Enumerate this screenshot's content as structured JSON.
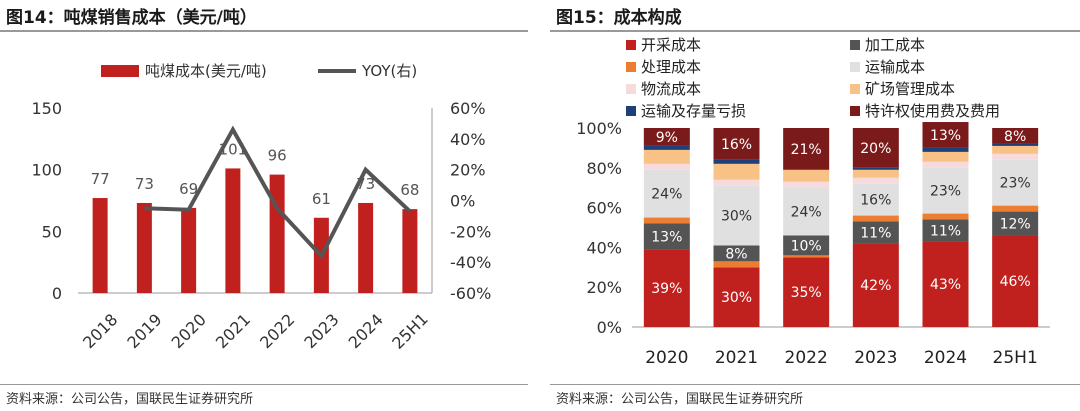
{
  "left_panel": {
    "title": "图14：吨煤销售成本（美元/吨）",
    "source": "资料来源：公司公告，国联民生证券研究所"
  },
  "right_panel": {
    "title": "图15：成本构成",
    "source": "资料来源：公司公告，国联民生证券研究所"
  },
  "colors": {
    "bar": "#C0201E",
    "line": "#555555",
    "axis": "#999999",
    "text": "#333333"
  },
  "chart_data": [
    {
      "type": "bar",
      "title": "",
      "categories": [
        "2018",
        "2019",
        "2020",
        "2021",
        "2022",
        "2023",
        "2024",
        "25H1"
      ],
      "series": [
        {
          "name": "吨煤成本(美元/吨)",
          "axis": "left",
          "kind": "bar",
          "values": [
            77,
            73,
            69,
            101,
            96,
            61,
            73,
            68
          ],
          "data_labels": [
            "77",
            "73",
            "69",
            "101",
            "96",
            "61",
            "73",
            "68"
          ]
        },
        {
          "name": "YOY(右)",
          "axis": "right",
          "kind": "line",
          "values": [
            null,
            -5,
            -6,
            46,
            -5,
            -36,
            20,
            -7
          ]
        }
      ],
      "y_left": {
        "ticks": [
          0,
          50,
          100,
          150
        ],
        "ylim": [
          0,
          150
        ]
      },
      "y_right": {
        "ticks": [
          "-60%",
          "-40%",
          "-20%",
          "0%",
          "20%",
          "40%",
          "60%"
        ],
        "ylim": [
          -60,
          60
        ]
      },
      "legend_position": "top",
      "grid": false
    },
    {
      "type": "bar",
      "stacked": true,
      "normalized": true,
      "title": "",
      "categories": [
        "2020",
        "2021",
        "2022",
        "2023",
        "2024",
        "25H1"
      ],
      "series": [
        {
          "name": "开采成本",
          "color": "#C0201E",
          "values": [
            39,
            30,
            35,
            42,
            43,
            46
          ],
          "labels": [
            "39%",
            "30%",
            "35%",
            "42%",
            "43%",
            "46%"
          ]
        },
        {
          "name": "处理成本",
          "color": "#ED7D31",
          "values": [
            0,
            3,
            1,
            0,
            0,
            0
          ],
          "labels": [
            "",
            "",
            "",
            "",
            "",
            ""
          ]
        },
        {
          "name": "加工成本",
          "color": "#545454",
          "values": [
            13,
            8,
            10,
            11,
            11,
            12
          ],
          "labels": [
            "13%",
            "8%",
            "10%",
            "11%",
            "11%",
            "12%"
          ]
        },
        {
          "name": "处理成本",
          "color": "#ED7D31",
          "values": [
            3,
            0,
            0,
            3,
            3,
            3
          ],
          "labels": [
            "",
            "",
            "",
            "",
            "",
            ""
          ]
        },
        {
          "name": "运输成本",
          "color": "#E0E0E0",
          "values": [
            24,
            30,
            24,
            16,
            23,
            23
          ],
          "labels": [
            "24%",
            "30%",
            "24%",
            "16%",
            "23%",
            "23%"
          ]
        },
        {
          "name": "物流成本",
          "color": "#F7DADB",
          "values": [
            3,
            3,
            3,
            3,
            3,
            3
          ],
          "labels": [
            "",
            "",
            "",
            "",
            "",
            ""
          ]
        },
        {
          "name": "矿场管理成本",
          "color": "#F8C186",
          "values": [
            7,
            8,
            6,
            4,
            5,
            4
          ],
          "labels": [
            "",
            "",
            "",
            "",
            "",
            ""
          ]
        },
        {
          "name": "运输及存量亏损",
          "color": "#1F3F7A",
          "values": [
            2,
            2,
            0,
            1,
            2,
            1
          ],
          "labels": [
            "",
            "",
            "",
            "",
            "",
            ""
          ]
        },
        {
          "name": "特许权使用费及费用",
          "color": "#7B1A1A",
          "values": [
            9,
            16,
            21,
            20,
            13,
            8
          ],
          "labels": [
            "9%",
            "16%",
            "21%",
            "20%",
            "13%",
            "8%"
          ]
        }
      ],
      "legend": [
        {
          "name": "开采成本",
          "color": "#C0201E"
        },
        {
          "name": "加工成本",
          "color": "#545454"
        },
        {
          "name": "处理成本",
          "color": "#ED7D31"
        },
        {
          "name": "运输成本",
          "color": "#E0E0E0"
        },
        {
          "name": "物流成本",
          "color": "#F7DADB"
        },
        {
          "name": "矿场管理成本",
          "color": "#F8C186"
        },
        {
          "name": "运输及存量亏损",
          "color": "#1F3F7A"
        },
        {
          "name": "特许权使用费及费用",
          "color": "#7B1A1A"
        }
      ],
      "y_axis": {
        "ticks": [
          "0%",
          "20%",
          "40%",
          "60%",
          "80%",
          "100%"
        ],
        "ylim": [
          0,
          100
        ]
      },
      "legend_position": "top",
      "grid": false
    }
  ]
}
